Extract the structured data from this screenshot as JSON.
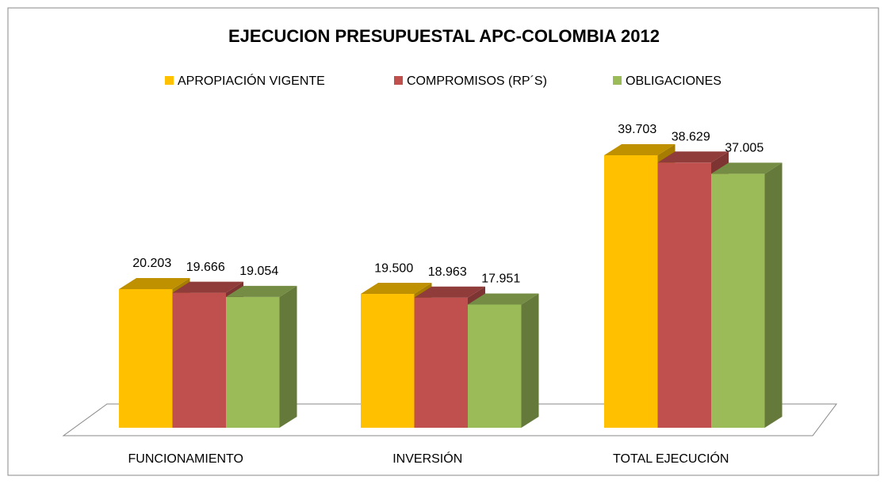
{
  "chart_data": {
    "type": "bar3d",
    "title": "EJECUCION PRESUPUESTAL APC-COLOMBIA 2012",
    "categories": [
      "FUNCIONAMIENTO",
      "INVERSIÓN",
      "TOTAL EJECUCIÓN"
    ],
    "series": [
      {
        "name": "APROPIACIÓN VIGENTE",
        "color": "#ffc000",
        "values": [
          20203,
          19500,
          39703
        ],
        "value_labels": [
          "20.203",
          "19.500",
          "39.703"
        ]
      },
      {
        "name": "COMPROMISOS (RP´S)",
        "color": "#c0504d",
        "values": [
          19666,
          18963,
          38629
        ],
        "value_labels": [
          "19.666",
          "18.963",
          "38.629"
        ]
      },
      {
        "name": "OBLIGACIONES",
        "color": "#9bbb59",
        "values": [
          19054,
          17951,
          37005
        ],
        "value_labels": [
          "19.054",
          "17.951",
          "37.005"
        ]
      }
    ],
    "legend": "top"
  }
}
